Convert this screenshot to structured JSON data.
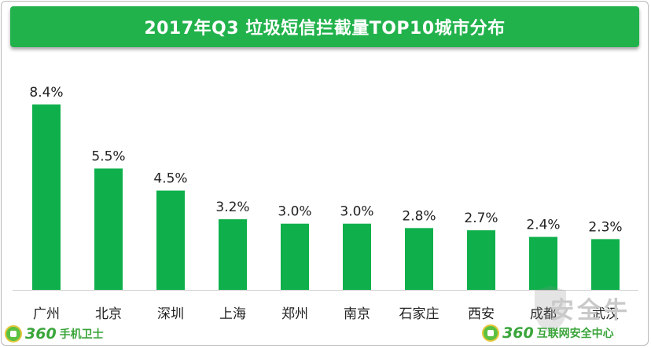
{
  "title": "2017年Q3 垃圾短信拦截量TOP10城市分布",
  "chart_data": {
    "type": "bar",
    "title": "2017年Q3 垃圾短信拦截量TOP10城市分布",
    "categories": [
      "广州",
      "北京",
      "深圳",
      "上海",
      "郑州",
      "南京",
      "石家庄",
      "西安",
      "成都",
      "武汉"
    ],
    "values": [
      8.4,
      5.5,
      4.5,
      3.2,
      3.0,
      3.0,
      2.8,
      2.7,
      2.4,
      2.3
    ],
    "value_labels": [
      "8.4%",
      "5.5%",
      "4.5%",
      "3.2%",
      "3.0%",
      "3.0%",
      "2.8%",
      "2.7%",
      "2.4%",
      "2.3%"
    ],
    "unit": "%",
    "xlabel": "",
    "ylabel": "",
    "ylim": [
      0,
      8.4
    ],
    "grid": false,
    "bar_color": "#0fb04c"
  },
  "logos": {
    "left": {
      "number": "360",
      "name": "手机卫士"
    },
    "right": {
      "number": "360",
      "name": "互联网安全中心"
    },
    "watermark": "安全牛"
  },
  "colors": {
    "title_bg": "#22b24c",
    "bar": "#0fb04c",
    "brand_text": "#3aa53a"
  }
}
